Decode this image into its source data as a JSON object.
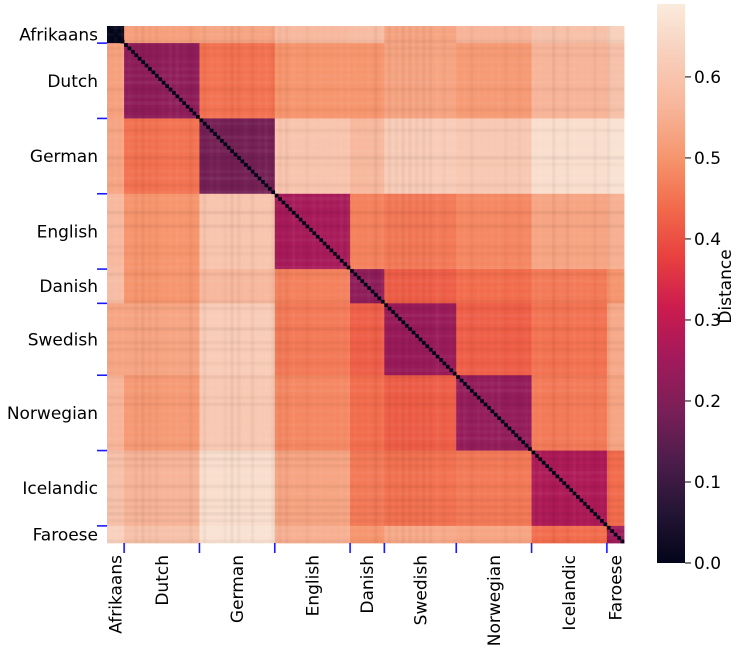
{
  "chart_data": {
    "type": "heatmap",
    "title": "",
    "xlabel": "",
    "ylabel": "",
    "categories": [
      "Afrikaans",
      "Dutch",
      "German",
      "English",
      "Danish",
      "Swedish",
      "Norwegian",
      "Icelandic",
      "Faroese"
    ],
    "group_sizes": [
      5,
      22,
      22,
      22,
      10,
      21,
      22,
      22,
      5
    ],
    "values": [
      [
        0.0,
        0.52,
        0.53,
        0.57,
        0.58,
        0.53,
        0.56,
        0.59,
        0.63
      ],
      [
        0.52,
        0.22,
        0.45,
        0.5,
        0.5,
        0.53,
        0.51,
        0.56,
        0.59
      ],
      [
        0.53,
        0.45,
        0.18,
        0.6,
        0.57,
        0.62,
        0.61,
        0.66,
        0.67
      ],
      [
        0.57,
        0.5,
        0.6,
        0.26,
        0.47,
        0.46,
        0.48,
        0.53,
        0.55
      ],
      [
        0.58,
        0.5,
        0.57,
        0.47,
        0.22,
        0.42,
        0.44,
        0.46,
        0.5
      ],
      [
        0.53,
        0.53,
        0.62,
        0.46,
        0.42,
        0.24,
        0.42,
        0.45,
        0.54
      ],
      [
        0.56,
        0.51,
        0.61,
        0.48,
        0.44,
        0.42,
        0.23,
        0.46,
        0.53
      ],
      [
        0.59,
        0.56,
        0.66,
        0.53,
        0.46,
        0.45,
        0.46,
        0.27,
        0.44
      ],
      [
        0.63,
        0.59,
        0.67,
        0.55,
        0.5,
        0.54,
        0.53,
        0.44,
        0.25
      ]
    ],
    "diagonal_value": 0.0,
    "colorbar": {
      "label": "Distance",
      "range": [
        0.0,
        0.69
      ],
      "ticks": [
        "0.0",
        "0.1",
        "0.2",
        "0.3",
        "0.4",
        "0.5",
        "0.6"
      ],
      "tick_values": [
        0.0,
        0.1,
        0.2,
        0.3,
        0.4,
        0.5,
        0.6
      ]
    },
    "colormap": [
      "#03051a",
      "#241534",
      "#4c1d4b",
      "#7a1f57",
      "#a11a5b",
      "#cb1b4f",
      "#e83f3f",
      "#f26b4b",
      "#f6966e",
      "#f7b69b",
      "#f8cfbb",
      "#faebdd"
    ],
    "group_separator_color": "#1a1aff",
    "grid": false
  }
}
